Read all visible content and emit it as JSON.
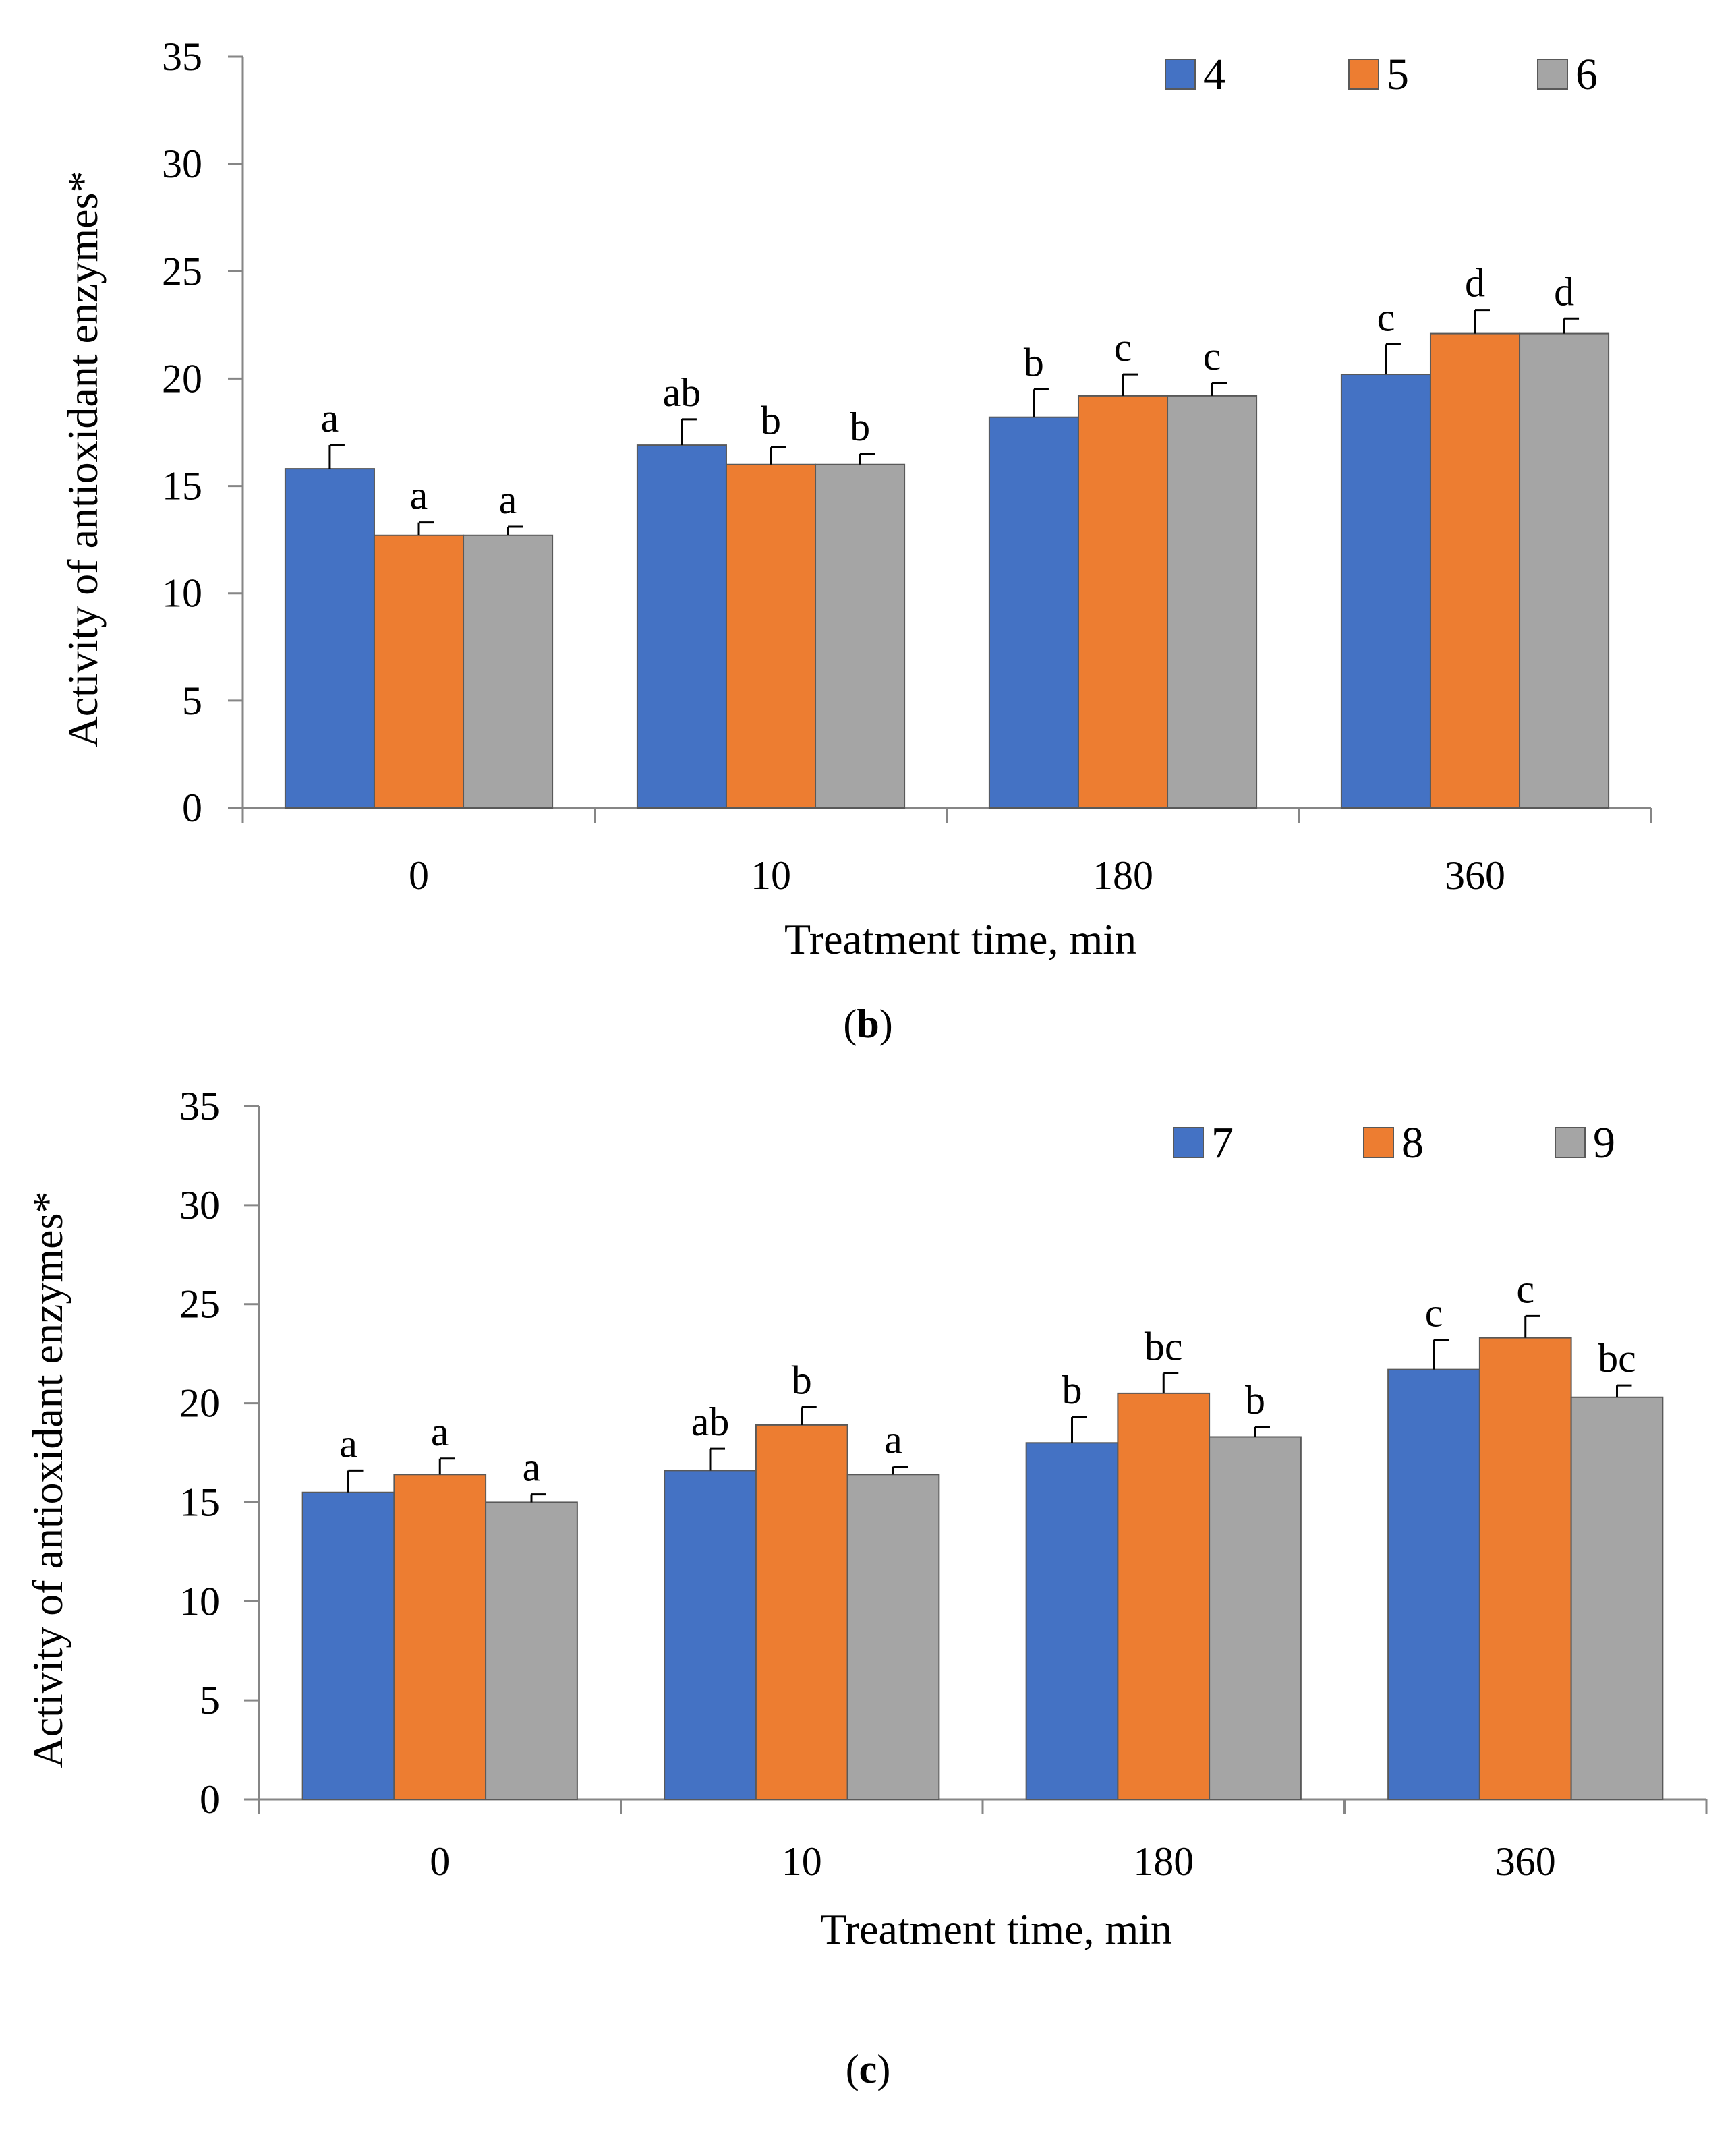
{
  "chart_data": [
    {
      "type": "bar",
      "panel_label": "b",
      "title": "",
      "xlabel": "Treatment time, min",
      "ylabel": "Activity of antioxidant enzymes*",
      "ylim": [
        0,
        35
      ],
      "yticks": [
        0,
        5,
        10,
        15,
        20,
        25,
        30,
        35
      ],
      "categories": [
        "0",
        "10",
        "180",
        "360"
      ],
      "legend_position": "top-right",
      "series": [
        {
          "name": "4",
          "color": "#4472C4",
          "values": [
            15.8,
            16.9,
            18.2,
            20.2
          ],
          "errors": [
            1.1,
            1.2,
            1.3,
            1.4
          ],
          "letters": [
            "a",
            "ab",
            "b",
            "c"
          ]
        },
        {
          "name": "5",
          "color": "#ED7D31",
          "values": [
            12.7,
            16.0,
            19.2,
            22.1
          ],
          "errors": [
            0.6,
            0.8,
            1.0,
            1.1
          ],
          "letters": [
            "a",
            "b",
            "c",
            "d"
          ]
        },
        {
          "name": "6",
          "color": "#A5A5A5",
          "values": [
            12.7,
            16.0,
            19.2,
            22.1
          ],
          "errors": [
            0.4,
            0.5,
            0.6,
            0.7
          ],
          "letters": [
            "a",
            "b",
            "c",
            "d"
          ]
        }
      ]
    },
    {
      "type": "bar",
      "panel_label": "c",
      "title": "",
      "xlabel": "Treatment time, min",
      "ylabel": "Activity of antioxidant enzymes*",
      "ylim": [
        0,
        35
      ],
      "yticks": [
        0,
        5,
        10,
        15,
        20,
        25,
        30,
        35
      ],
      "categories": [
        "0",
        "10",
        "180",
        "360"
      ],
      "legend_position": "top-right",
      "series": [
        {
          "name": "7",
          "color": "#4472C4",
          "values": [
            15.5,
            16.6,
            18.0,
            21.7
          ],
          "errors": [
            1.1,
            1.1,
            1.3,
            1.5
          ],
          "letters": [
            "a",
            "ab",
            "b",
            "c"
          ]
        },
        {
          "name": "8",
          "color": "#ED7D31",
          "values": [
            16.4,
            18.9,
            20.5,
            23.3
          ],
          "errors": [
            0.8,
            0.9,
            1.0,
            1.1
          ],
          "letters": [
            "a",
            "b",
            "bc",
            "c"
          ]
        },
        {
          "name": "9",
          "color": "#A5A5A5",
          "values": [
            15.0,
            16.4,
            18.3,
            20.3
          ],
          "errors": [
            0.4,
            0.4,
            0.5,
            0.6
          ],
          "letters": [
            "a",
            "a",
            "b",
            "bc"
          ]
        }
      ]
    }
  ]
}
